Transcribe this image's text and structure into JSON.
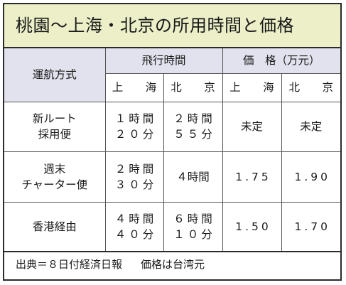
{
  "title": "桃園〜上海・北京の所用時間と価格",
  "headers": {
    "route_method": "運航方式",
    "flight_time": "飛行時間",
    "price": "価　格（万元）",
    "shanghai": "上　海",
    "beijing": "北　京"
  },
  "rows": [
    {
      "label_line1": "新ルート",
      "label_line2": "採用便",
      "shanghai_time_line1": "１時間",
      "shanghai_time_line2": "２０分",
      "beijing_time_line1": "２時間",
      "beijing_time_line2": "５５分",
      "shanghai_price": "未定",
      "beijing_price": "未定"
    },
    {
      "label_line1": "週末",
      "label_line2": "チャーター便",
      "shanghai_time_line1": "２時間",
      "shanghai_time_line2": "３０分",
      "beijing_time": "４時間",
      "shanghai_price": "1.75",
      "beijing_price": "1.90"
    },
    {
      "label": "香港経由",
      "shanghai_time_line1": "４時間",
      "shanghai_time_line2": "４０分",
      "beijing_time_line1": "６時間",
      "beijing_time_line2": "１０分",
      "shanghai_price": "1.50",
      "beijing_price": "1.70"
    }
  ],
  "footer": {
    "source": "出典＝８日付経済日報",
    "note": "価格は台湾元"
  }
}
